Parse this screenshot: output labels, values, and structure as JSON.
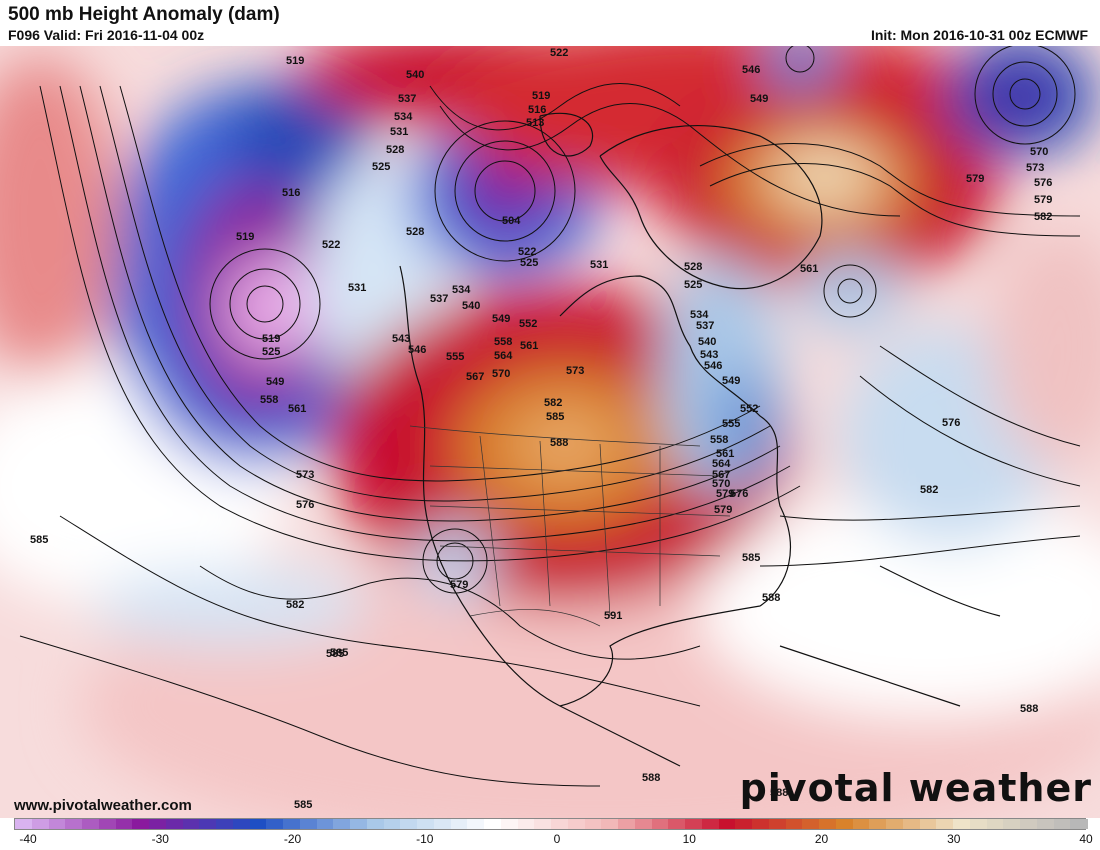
{
  "header": {
    "title": "500 mb Height Anomaly (dam)",
    "valid": "F096 Valid: Fri 2016-11-04 00z",
    "init": "Init: Mon 2016-10-31 00z ECMWF"
  },
  "footer": {
    "website": "www.pivotalweather.com",
    "brand": "pivotal weather"
  },
  "colorbar": {
    "ticks": [
      "-40",
      "-30",
      "-20",
      "-10",
      "0",
      "10",
      "20",
      "30",
      "40"
    ],
    "min": -40,
    "max": 40,
    "colors": {
      "deep_negative": "#d9b3f0",
      "purple": "#8a1a9e",
      "blue": "#1e4fc4",
      "light_blue": "#a9c8e8",
      "neutral": "#ffffff",
      "light_red": "#f2b8b8",
      "red": "#c8102e",
      "orange": "#d9822b",
      "tan": "#efe3c8",
      "gray": "#b8b8b8"
    }
  },
  "contour_labels": [
    "519",
    "540",
    "537",
    "534",
    "531",
    "528",
    "525",
    "522",
    "519",
    "516",
    "513",
    "504",
    "522",
    "525",
    "531",
    "546",
    "549",
    "570",
    "573",
    "576",
    "579",
    "582",
    "561",
    "516",
    "519",
    "522",
    "528",
    "531",
    "534",
    "537",
    "540",
    "543",
    "546",
    "549",
    "552",
    "555",
    "558",
    "561",
    "564",
    "567",
    "570",
    "573",
    "576",
    "579",
    "582",
    "585",
    "588",
    "519",
    "525",
    "549",
    "558",
    "561",
    "573",
    "576",
    "585",
    "582",
    "585",
    "579",
    "591",
    "585",
    "588",
    "588",
    "588",
    "585",
    "579",
    "582",
    "525",
    "528",
    "534",
    "537",
    "540",
    "543",
    "546",
    "549",
    "552",
    "555",
    "558",
    "561",
    "564",
    "567",
    "570",
    "576",
    "579",
    "585",
    "588"
  ]
}
